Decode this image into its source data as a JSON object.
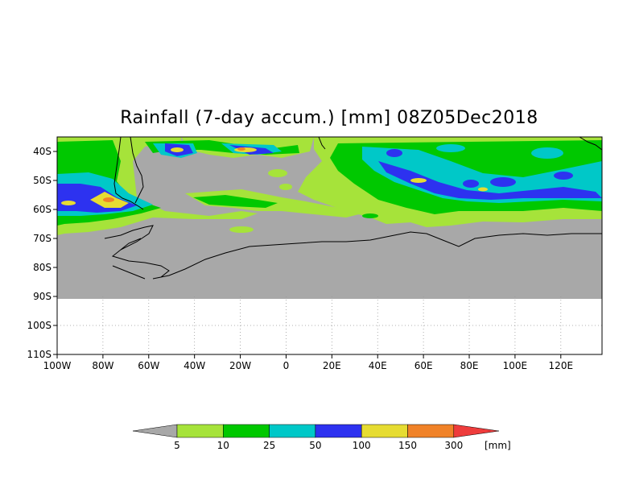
{
  "title": "Rainfall (7-day accum.) [mm] 08Z05Dec2018",
  "map": {
    "lon_range": [
      -100,
      138
    ],
    "lat_range": [
      -35,
      -110
    ],
    "data_extent_lat": -90,
    "lat_ticks": [
      {
        "value": -40,
        "label": "40S"
      },
      {
        "value": -50,
        "label": "50S"
      },
      {
        "value": -60,
        "label": "60S"
      },
      {
        "value": -70,
        "label": "70S"
      },
      {
        "value": -80,
        "label": "80S"
      },
      {
        "value": -90,
        "label": "90S"
      },
      {
        "value": -100,
        "label": "100S"
      },
      {
        "value": -110,
        "label": "110S"
      }
    ],
    "lon_ticks": [
      {
        "value": -100,
        "label": "100W"
      },
      {
        "value": -80,
        "label": "80W"
      },
      {
        "value": -60,
        "label": "60W"
      },
      {
        "value": -40,
        "label": "40W"
      },
      {
        "value": -20,
        "label": "20W"
      },
      {
        "value": 0,
        "label": "0"
      },
      {
        "value": 20,
        "label": "20E"
      },
      {
        "value": 40,
        "label": "40E"
      },
      {
        "value": 60,
        "label": "60E"
      },
      {
        "value": 80,
        "label": "80E"
      },
      {
        "value": 100,
        "label": "100E"
      },
      {
        "value": 120,
        "label": "120E"
      }
    ]
  },
  "legend": {
    "under_color": "#a8a8a8",
    "over_color": "#ee3c3c",
    "bins": [
      {
        "color": "#a6e33a"
      },
      {
        "color": "#00c800"
      },
      {
        "color": "#00c8c8"
      },
      {
        "color": "#2d32f0"
      },
      {
        "color": "#e6dc32"
      },
      {
        "color": "#f08228"
      }
    ],
    "labels": [
      "5",
      "10",
      "25",
      "50",
      "100",
      "150",
      "300"
    ],
    "units": "[mm]"
  },
  "colors": {
    "no_rain": "#a8a8a8",
    "light": "#a6e33a",
    "green": "#00c800",
    "cyan": "#00c8c8",
    "blue": "#2d32f0",
    "yellow": "#e6dc32",
    "orange": "#f08228"
  }
}
